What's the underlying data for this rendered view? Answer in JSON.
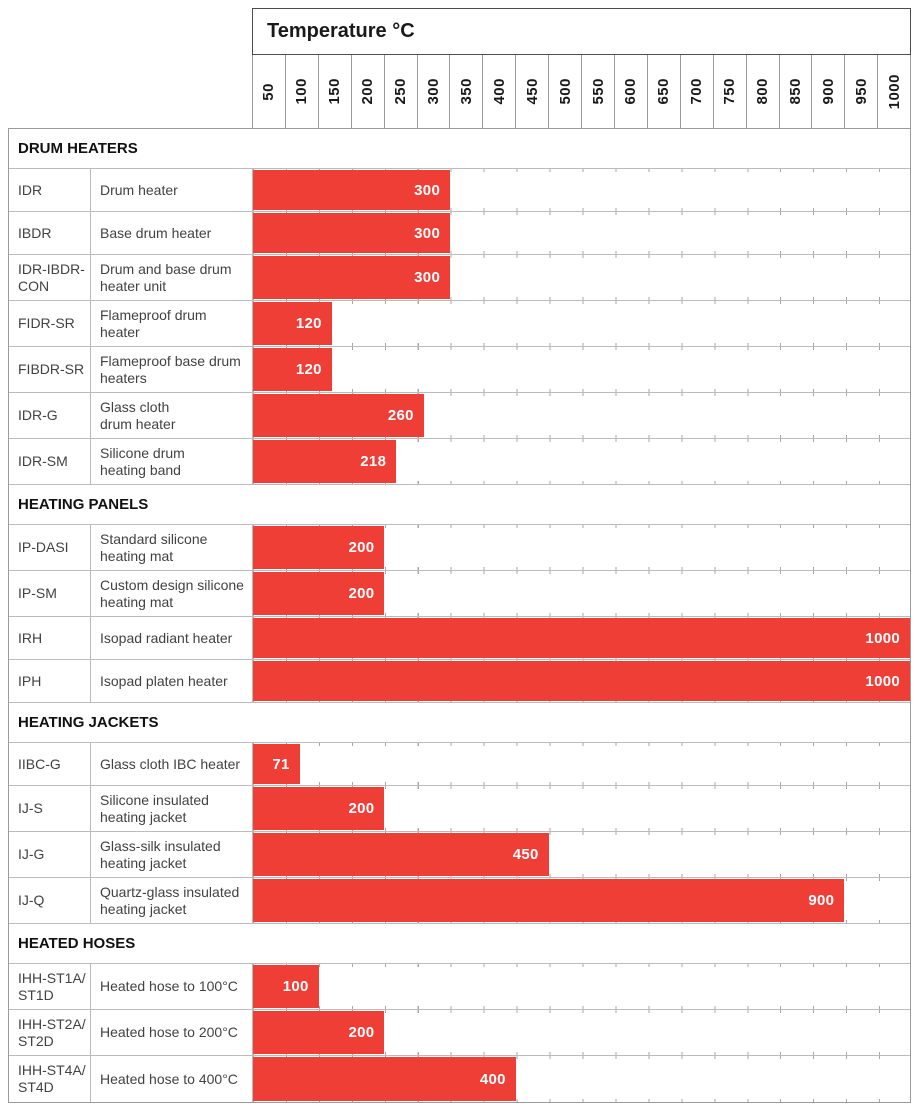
{
  "header": {
    "title": "Temperature °C"
  },
  "colors": {
    "bar_red": "#ee3e36",
    "grid_inner": "#bcbcbc",
    "grid_outer": "#9b9b9b",
    "header_border": "#4d4d4d",
    "text_dark": "#1a1a1a",
    "text_body": "#424242",
    "bar_label": "#ffffff"
  },
  "chart_data": {
    "type": "bar",
    "orientation": "horizontal",
    "title": "Temperature °C",
    "xlabel": "Temperature °C",
    "unit": "°C",
    "xlim": [
      0,
      1000
    ],
    "x_ticks": [
      50,
      100,
      150,
      200,
      250,
      300,
      350,
      400,
      450,
      500,
      550,
      600,
      650,
      700,
      750,
      800,
      850,
      900,
      950,
      1000
    ],
    "grid": "tick-notches-on-row-lines",
    "sections": [
      {
        "label": "DRUM HEATERS",
        "rows": [
          {
            "code": "IDR",
            "description": "Drum heater",
            "value": 300
          },
          {
            "code": "IBDR",
            "description": "Base drum heater",
            "value": 300
          },
          {
            "code": "IDR-IBDR-\nCON",
            "description": "Drum and base drum\nheater unit",
            "value": 300
          },
          {
            "code": "FIDR-SR",
            "description": "Flameproof drum\nheater",
            "value": 120
          },
          {
            "code": "FIBDR-SR",
            "description": "Flameproof base drum\nheaters",
            "value": 120
          },
          {
            "code": "IDR-G",
            "description": "Glass cloth\ndrum heater",
            "value": 260
          },
          {
            "code": "IDR-SM",
            "description": "Silicone drum\nheating band",
            "value": 218
          }
        ]
      },
      {
        "label": "HEATING PANELS",
        "rows": [
          {
            "code": "IP-DASI",
            "description": "Standard silicone\nheating mat",
            "value": 200
          },
          {
            "code": "IP-SM",
            "description": "Custom design silicone\nheating mat",
            "value": 200
          },
          {
            "code": "IRH",
            "description": "Isopad radiant heater",
            "value": 1000
          },
          {
            "code": "IPH",
            "description": "Isopad platen heater",
            "value": 1000
          }
        ]
      },
      {
        "label": "HEATING JACKETS",
        "rows": [
          {
            "code": "IIBC-G",
            "description": "Glass cloth IBC heater",
            "value": 71
          },
          {
            "code": "IJ-S",
            "description": "Silicone insulated\nheating jacket",
            "value": 200
          },
          {
            "code": "IJ-G",
            "description": "Glass-silk insulated\nheating jacket",
            "value": 450
          },
          {
            "code": "IJ-Q",
            "description": "Quartz-glass insulated\nheating jacket",
            "value": 900
          }
        ]
      },
      {
        "label": "HEATED HOSES",
        "rows": [
          {
            "code": "IHH-ST1A/\nST1D",
            "description": "Heated hose to 100°C",
            "value": 100
          },
          {
            "code": "IHH-ST2A/\nST2D",
            "description": "Heated hose to 200°C",
            "value": 200
          },
          {
            "code": "IHH-ST4A/\nST4D",
            "description": "Heated hose to 400°C",
            "value": 400
          }
        ]
      }
    ]
  }
}
